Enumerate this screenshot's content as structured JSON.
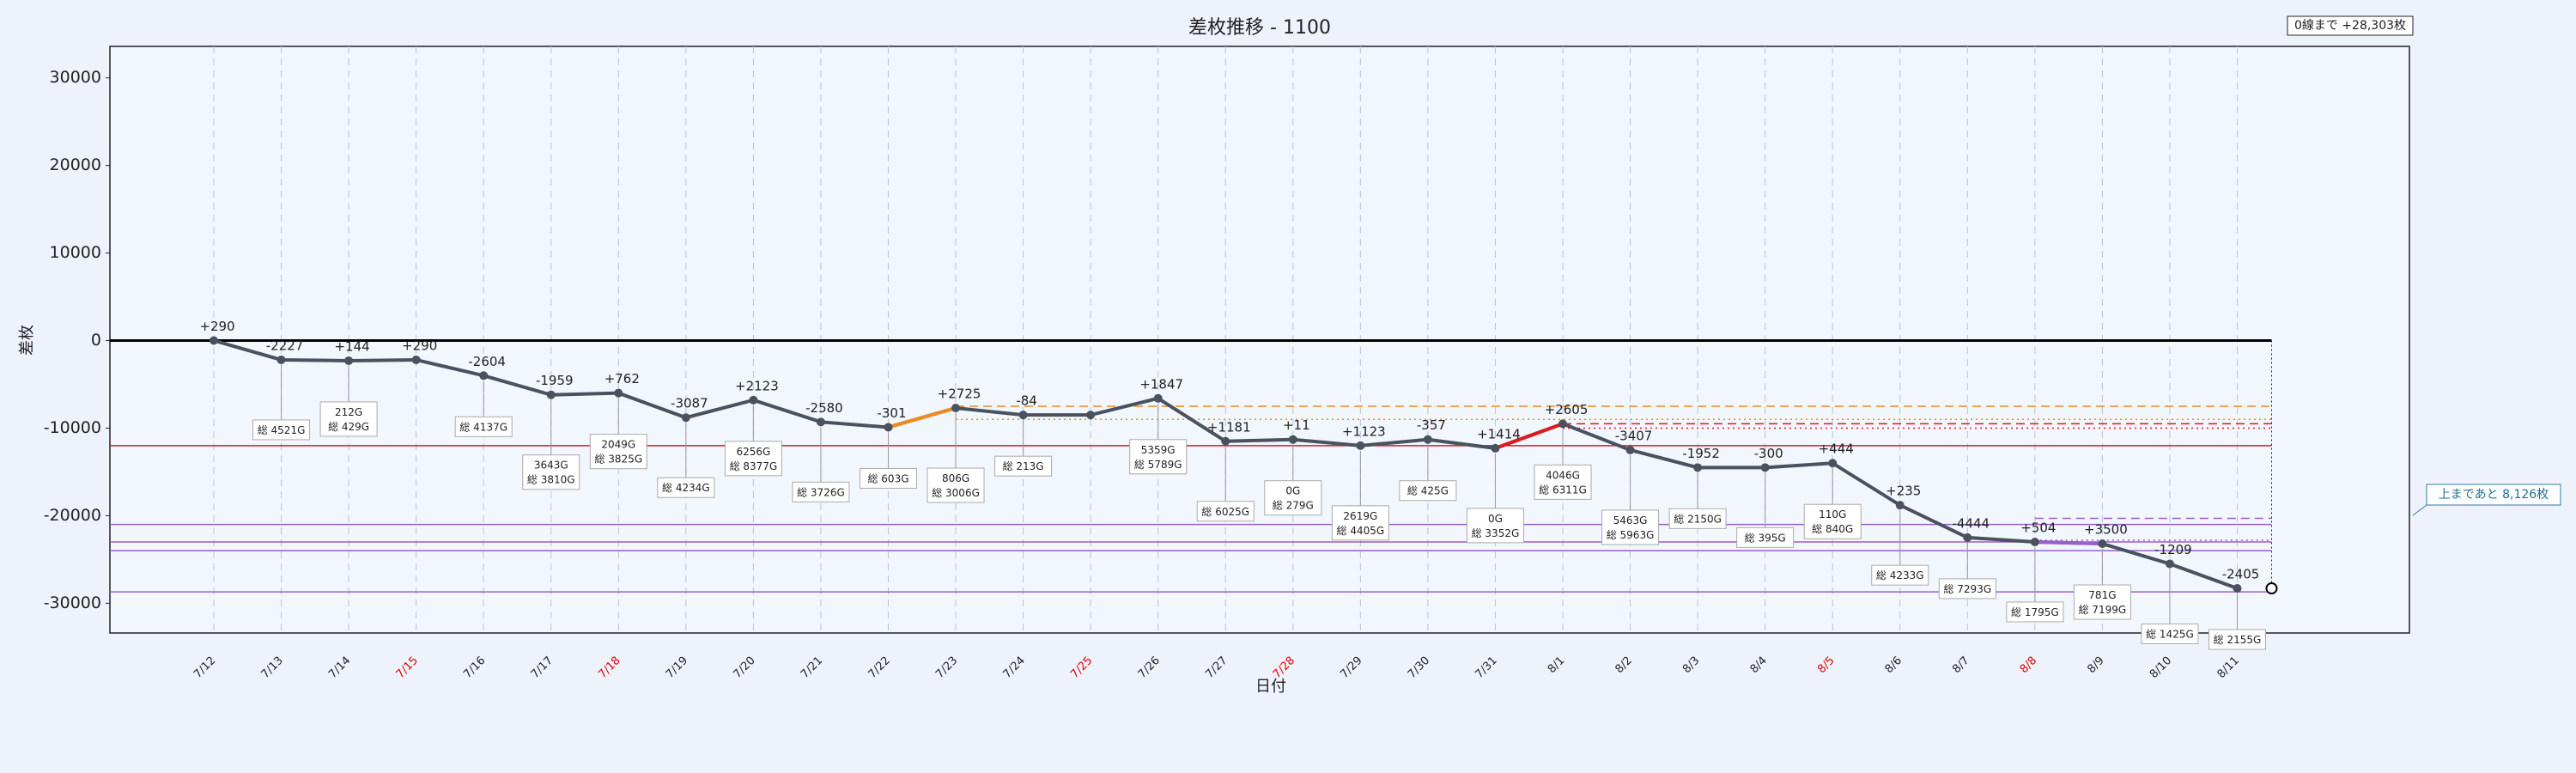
{
  "chart_data": {
    "type": "line",
    "title": "差枚推移 - 1100",
    "xlabel": "日付",
    "ylabel": "差枚",
    "categories": [
      "7/12",
      "7/13",
      "7/14",
      "7/15",
      "7/16",
      "7/17",
      "7/18",
      "7/19",
      "7/20",
      "7/21",
      "7/22",
      "7/23",
      "7/24",
      "7/25",
      "7/26",
      "7/27",
      "7/28",
      "7/29",
      "7/30",
      "7/31",
      "8/1",
      "8/2",
      "8/3",
      "8/4",
      "8/5",
      "8/6",
      "8/7",
      "8/8",
      "8/9",
      "8/10",
      "8/11"
    ],
    "category_colors": [
      "#222",
      "#222",
      "#222",
      "#e00000",
      "#222",
      "#222",
      "#e00000",
      "#222",
      "#222",
      "#222",
      "#222",
      "#222",
      "#222",
      "#e00000",
      "#222",
      "#222",
      "#e00000",
      "#222",
      "#222",
      "#222",
      "#222",
      "#222",
      "#222",
      "#222",
      "#e00000",
      "#222",
      "#222",
      "#e00000",
      "#222",
      "#222",
      "#222"
    ],
    "series": [
      {
        "color": "#4a5260",
        "values": [
          0,
          -2200,
          -2300,
          -2200,
          -4000,
          -6200,
          -6000,
          -8800,
          -6800,
          -9300,
          -9900,
          -7700,
          -8500,
          -8500,
          -6600,
          -11500,
          -11300,
          -12000,
          -11300,
          -12300,
          -9500,
          -12500,
          -14500,
          -14500,
          -14000,
          -18800,
          -22500,
          -23000,
          -23200,
          -25500,
          -28303
        ]
      },
      {
        "color": "#f08a1c",
        "values": [
          null,
          null,
          null,
          null,
          null,
          null,
          null,
          null,
          null,
          null,
          -9900,
          -7700,
          null,
          null,
          null,
          null,
          null,
          null,
          null,
          null,
          null,
          null,
          null,
          null,
          null,
          null,
          null,
          null,
          null,
          null,
          null
        ]
      },
      {
        "color": "#e0191c",
        "values": [
          null,
          null,
          null,
          null,
          null,
          null,
          null,
          null,
          null,
          null,
          null,
          null,
          null,
          null,
          null,
          null,
          null,
          null,
          null,
          -12300,
          -9500,
          null,
          null,
          null,
          null,
          null,
          null,
          null,
          null,
          null,
          null
        ]
      },
      {
        "color": "#9a5fc8",
        "values": [
          null,
          null,
          null,
          null,
          null,
          null,
          null,
          null,
          null,
          null,
          null,
          null,
          null,
          null,
          null,
          null,
          null,
          null,
          null,
          null,
          null,
          null,
          null,
          null,
          null,
          null,
          null,
          -23000,
          -23200,
          null,
          null
        ]
      }
    ],
    "point_labels": [
      "+290",
      "-2227",
      "+144",
      "+290",
      "-2604",
      "-1959",
      "+762",
      "-3087",
      "+2123",
      "-2580",
      "-301",
      "+2725",
      "-84",
      null,
      "+1847",
      "+1181",
      "+11",
      "+1123",
      "-357",
      "+1414",
      "+2605",
      "-3407",
      "-1952",
      "-300",
      "+444",
      "+235",
      "-4444",
      "+504",
      "+3500",
      "-1209",
      "-2405"
    ],
    "game_labels": [
      null,
      "総 4521G",
      "212G\n総 429G",
      null,
      "総 4137G",
      "3643G\n総 3810G",
      "2049G\n総 3825G",
      "総 4234G",
      "6256G\n総 8377G",
      "総 3726G",
      "総 603G",
      "806G\n総 3006G",
      "総 213G",
      null,
      "5359G\n総 5789G",
      "総 6025G",
      "0G\n総 279G",
      "2619G\n総 4405G",
      "総 425G",
      "0G\n総 3352G",
      "4046G\n総 6311G",
      "5463G\n総 5963G",
      "総 2150G",
      "総 395G",
      "110G\n総 840G",
      "総 4233G",
      "総 7293G",
      "総 1795G",
      "781G\n総 7199G",
      "総 1425G",
      "総 2155G"
    ],
    "reference_lines": [
      {
        "value": 0,
        "color": "#000000",
        "dash": "none"
      },
      {
        "value": -12000,
        "color": "#e0191c",
        "dash": "none"
      },
      {
        "value": -21000,
        "color": "#9a5fc8",
        "dash": "none"
      },
      {
        "value": -23000,
        "color": "#9a5fc8",
        "dash": "none"
      },
      {
        "value": -24000,
        "color": "#9a5fc8",
        "dash": "none"
      },
      {
        "value": -28700,
        "color": "#9a5fc8",
        "dash": "none"
      },
      {
        "value": -7500,
        "color": "#f08a1c",
        "dash": "10,6"
      },
      {
        "value": -9000,
        "color": "#f08a1c",
        "dash": "2,4"
      },
      {
        "value": -9500,
        "color": "#e0191c",
        "dash": "10,6"
      },
      {
        "value": -10000,
        "color": "#e0191c",
        "dash": "2,4"
      },
      {
        "value": -20300,
        "color": "#9a5fc8",
        "dash": "10,6"
      },
      {
        "value": -22800,
        "color": "#9a5fc8",
        "dash": "2,4"
      }
    ],
    "zero_note": "0線まで +28,303枚",
    "top_note": "上まであと 8,126枚",
    "ylim": [
      -33400,
      33600
    ],
    "yticks": [
      -30000,
      -20000,
      -10000,
      0,
      10000,
      20000,
      30000
    ],
    "grid": true
  }
}
